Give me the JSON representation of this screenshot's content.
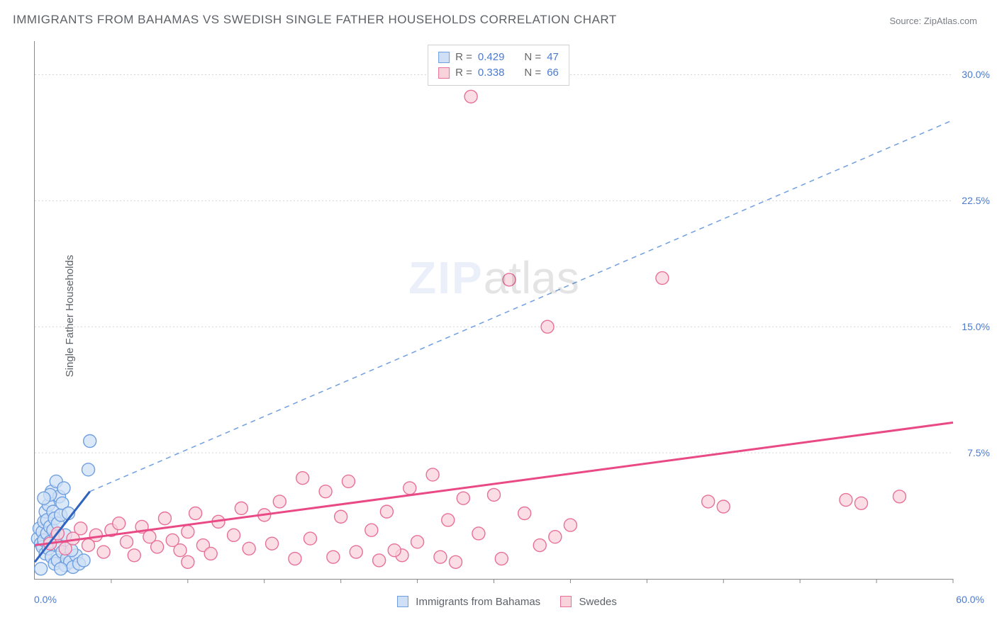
{
  "title": "IMMIGRANTS FROM BAHAMAS VS SWEDISH SINGLE FATHER HOUSEHOLDS CORRELATION CHART",
  "source": "Source: ZipAtlas.com",
  "ylabel": "Single Father Households",
  "watermark_a": "ZIP",
  "watermark_b": "atlas",
  "chart": {
    "type": "scatter",
    "background_color": "#ffffff",
    "grid_color": "#d5d5d5",
    "axis_color": "#888888",
    "tick_label_color": "#4a7bd0",
    "xlim": [
      0,
      60
    ],
    "ylim": [
      0,
      32
    ],
    "x_tick_positions": [
      5,
      10,
      15,
      20,
      25,
      30,
      35,
      40,
      45,
      50,
      55,
      60
    ],
    "y_grid": [
      7.5,
      15.0,
      22.5,
      30.0
    ],
    "y_tick_labels": [
      "7.5%",
      "15.0%",
      "22.5%",
      "30.0%"
    ],
    "x_end_labels": [
      "0.0%",
      "60.0%"
    ],
    "marker_radius": 9,
    "marker_stroke_width": 1.4,
    "series": [
      {
        "name": "Immigrants from Bahamas",
        "fill": "#cfe0f6",
        "stroke": "#6f9fe0",
        "trend_color": "#2e63c0",
        "trend_dash_color": "#6f9fe0",
        "trend_width": 3,
        "trend_solid": {
          "x1": 0,
          "y1": 1.0,
          "x2": 3.6,
          "y2": 5.2
        },
        "trend_dash": {
          "x1": 3.6,
          "y1": 5.2,
          "x2": 60,
          "y2": 27.3
        },
        "R": "0.429",
        "N": "47",
        "points": [
          [
            0.2,
            2.4
          ],
          [
            0.3,
            3.0
          ],
          [
            0.4,
            2.1
          ],
          [
            0.5,
            2.8
          ],
          [
            0.5,
            1.9
          ],
          [
            0.6,
            3.4
          ],
          [
            0.6,
            2.3
          ],
          [
            0.7,
            4.0
          ],
          [
            0.7,
            1.5
          ],
          [
            0.8,
            2.7
          ],
          [
            0.8,
            3.5
          ],
          [
            0.9,
            1.8
          ],
          [
            0.9,
            4.4
          ],
          [
            1.0,
            2.2
          ],
          [
            1.0,
            3.1
          ],
          [
            1.1,
            5.2
          ],
          [
            1.1,
            1.3
          ],
          [
            1.2,
            2.9
          ],
          [
            1.2,
            4.0
          ],
          [
            1.3,
            3.6
          ],
          [
            1.3,
            0.9
          ],
          [
            1.4,
            5.8
          ],
          [
            1.4,
            2.5
          ],
          [
            1.5,
            1.1
          ],
          [
            1.5,
            3.3
          ],
          [
            1.6,
            4.9
          ],
          [
            1.6,
            2.0
          ],
          [
            1.7,
            3.8
          ],
          [
            1.8,
            4.5
          ],
          [
            1.8,
            1.6
          ],
          [
            1.9,
            5.4
          ],
          [
            2.0,
            2.6
          ],
          [
            2.0,
            0.8
          ],
          [
            2.1,
            1.2
          ],
          [
            2.2,
            3.9
          ],
          [
            2.3,
            1.0
          ],
          [
            2.5,
            0.7
          ],
          [
            2.7,
            1.4
          ],
          [
            2.9,
            0.9
          ],
          [
            3.2,
            1.1
          ],
          [
            3.5,
            6.5
          ],
          [
            1.0,
            5.0
          ],
          [
            0.6,
            4.8
          ],
          [
            3.6,
            8.2
          ],
          [
            0.4,
            0.6
          ],
          [
            2.4,
            1.7
          ],
          [
            1.7,
            0.6
          ]
        ]
      },
      {
        "name": "Swedes",
        "fill": "#f9d3dc",
        "stroke": "#e77099",
        "trend_color": "#e94a85",
        "trend_width": 3,
        "trend_solid": {
          "x1": 0,
          "y1": 2.0,
          "x2": 60,
          "y2": 9.3
        },
        "R": "0.338",
        "N": "66",
        "points": [
          [
            1,
            2.1
          ],
          [
            1.5,
            2.7
          ],
          [
            2,
            1.8
          ],
          [
            2.5,
            2.4
          ],
          [
            3,
            3.0
          ],
          [
            3.5,
            2.0
          ],
          [
            4,
            2.6
          ],
          [
            4.5,
            1.6
          ],
          [
            5,
            2.9
          ],
          [
            5.5,
            3.3
          ],
          [
            6,
            2.2
          ],
          [
            6.5,
            1.4
          ],
          [
            7,
            3.1
          ],
          [
            7.5,
            2.5
          ],
          [
            8,
            1.9
          ],
          [
            8.5,
            3.6
          ],
          [
            9,
            2.3
          ],
          [
            9.5,
            1.7
          ],
          [
            10,
            2.8
          ],
          [
            10.5,
            3.9
          ],
          [
            11,
            2.0
          ],
          [
            11.5,
            1.5
          ],
          [
            12,
            3.4
          ],
          [
            13,
            2.6
          ],
          [
            13.5,
            4.2
          ],
          [
            14,
            1.8
          ],
          [
            15,
            3.8
          ],
          [
            15.5,
            2.1
          ],
          [
            16,
            4.6
          ],
          [
            17,
            1.2
          ],
          [
            17.5,
            6.0
          ],
          [
            18,
            2.4
          ],
          [
            19,
            5.2
          ],
          [
            19.5,
            1.3
          ],
          [
            20,
            3.7
          ],
          [
            20.5,
            5.8
          ],
          [
            21,
            1.6
          ],
          [
            22,
            2.9
          ],
          [
            22.5,
            1.1
          ],
          [
            23,
            4.0
          ],
          [
            24,
            1.4
          ],
          [
            24.5,
            5.4
          ],
          [
            25,
            2.2
          ],
          [
            26,
            6.2
          ],
          [
            26.5,
            1.3
          ],
          [
            27,
            3.5
          ],
          [
            27.5,
            1.0
          ],
          [
            28,
            4.8
          ],
          [
            28.5,
            28.7
          ],
          [
            29,
            2.7
          ],
          [
            30,
            5.0
          ],
          [
            30.5,
            1.2
          ],
          [
            31,
            17.8
          ],
          [
            32,
            3.9
          ],
          [
            33,
            2.0
          ],
          [
            33.5,
            15.0
          ],
          [
            34,
            2.5
          ],
          [
            35,
            3.2
          ],
          [
            41,
            17.9
          ],
          [
            44,
            4.6
          ],
          [
            45,
            4.3
          ],
          [
            53,
            4.7
          ],
          [
            54,
            4.5
          ],
          [
            56.5,
            4.9
          ],
          [
            10,
            1.0
          ],
          [
            23.5,
            1.7
          ]
        ]
      }
    ]
  },
  "legend_bottom": [
    {
      "label": "Immigrants from Bahamas",
      "fill": "#cfe0f6",
      "stroke": "#6f9fe0"
    },
    {
      "label": "Swedes",
      "fill": "#f9d3dc",
      "stroke": "#e77099"
    }
  ]
}
